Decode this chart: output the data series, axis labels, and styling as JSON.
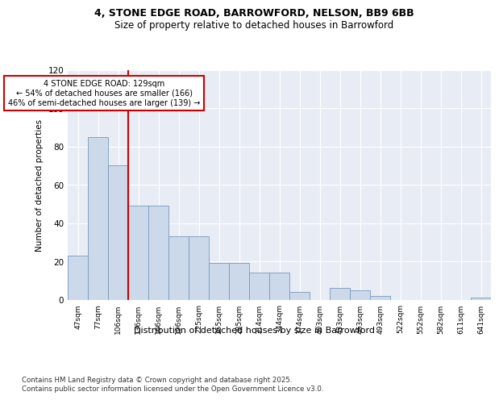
{
  "title1": "4, STONE EDGE ROAD, BARROWFORD, NELSON, BB9 6BB",
  "title2": "Size of property relative to detached houses in Barrowford",
  "xlabel": "Distribution of detached houses by size in Barrowford",
  "ylabel": "Number of detached properties",
  "categories": [
    "47sqm",
    "77sqm",
    "106sqm",
    "136sqm",
    "166sqm",
    "196sqm",
    "225sqm",
    "255sqm",
    "285sqm",
    "314sqm",
    "344sqm",
    "374sqm",
    "403sqm",
    "433sqm",
    "463sqm",
    "493sqm",
    "522sqm",
    "552sqm",
    "582sqm",
    "611sqm",
    "641sqm"
  ],
  "values": [
    23,
    85,
    70,
    49,
    49,
    33,
    33,
    19,
    19,
    14,
    14,
    4,
    0,
    6,
    5,
    2,
    0,
    0,
    0,
    0,
    1
  ],
  "bar_color": "#ccd9ea",
  "bar_edge_color": "#7799bb",
  "vline_x_index": 2.5,
  "vline_color": "#cc0000",
  "annotation_text": "4 STONE EDGE ROAD: 129sqm\n← 54% of detached houses are smaller (166)\n46% of semi-detached houses are larger (139) →",
  "annotation_box_color": "#cc0000",
  "ylim": [
    0,
    120
  ],
  "yticks": [
    0,
    20,
    40,
    60,
    80,
    100,
    120
  ],
  "background_color": "#e8edf5",
  "grid_color": "#ffffff",
  "footer": "Contains HM Land Registry data © Crown copyright and database right 2025.\nContains public sector information licensed under the Open Government Licence v3.0."
}
